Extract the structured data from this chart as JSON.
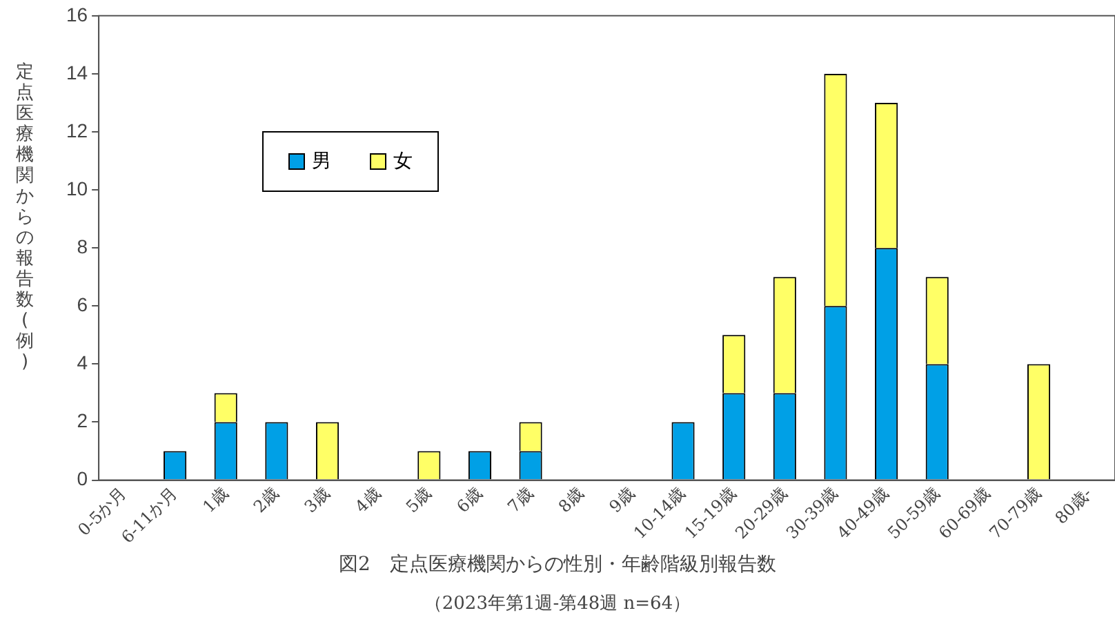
{
  "chart_data": {
    "type": "bar",
    "title": "図2　定点医療機関からの性別・年齢階級別報告数",
    "subtitle": "（2023年第1週-第48週 n=64）",
    "ylabel": "定点医療機関からの報告数(例)",
    "categories": [
      "0-5か月",
      "6-11か月",
      "1歳",
      "2歳",
      "3歳",
      "4歳",
      "5歳",
      "6歳",
      "7歳",
      "8歳",
      "9歳",
      "10-14歳",
      "15-19歳",
      "20-29歳",
      "30-39歳",
      "40-49歳",
      "50-59歳",
      "60-69歳",
      "70-79歳",
      "80歳-"
    ],
    "series": [
      {
        "name": "男",
        "color": "#00a0e6",
        "values": [
          0,
          1,
          2,
          2,
          0,
          0,
          0,
          1,
          1,
          0,
          0,
          2,
          3,
          3,
          6,
          8,
          4,
          0,
          0,
          0
        ]
      },
      {
        "name": "女",
        "color": "#ffff66",
        "values": [
          0,
          0,
          1,
          0,
          2,
          0,
          1,
          0,
          1,
          0,
          0,
          0,
          2,
          4,
          8,
          5,
          3,
          0,
          4,
          0
        ]
      }
    ],
    "stacked": true,
    "ylim": [
      0,
      16
    ],
    "yticks": [
      0,
      2,
      4,
      6,
      8,
      10,
      12,
      14,
      16
    ],
    "grid": false,
    "legend": "top left"
  }
}
